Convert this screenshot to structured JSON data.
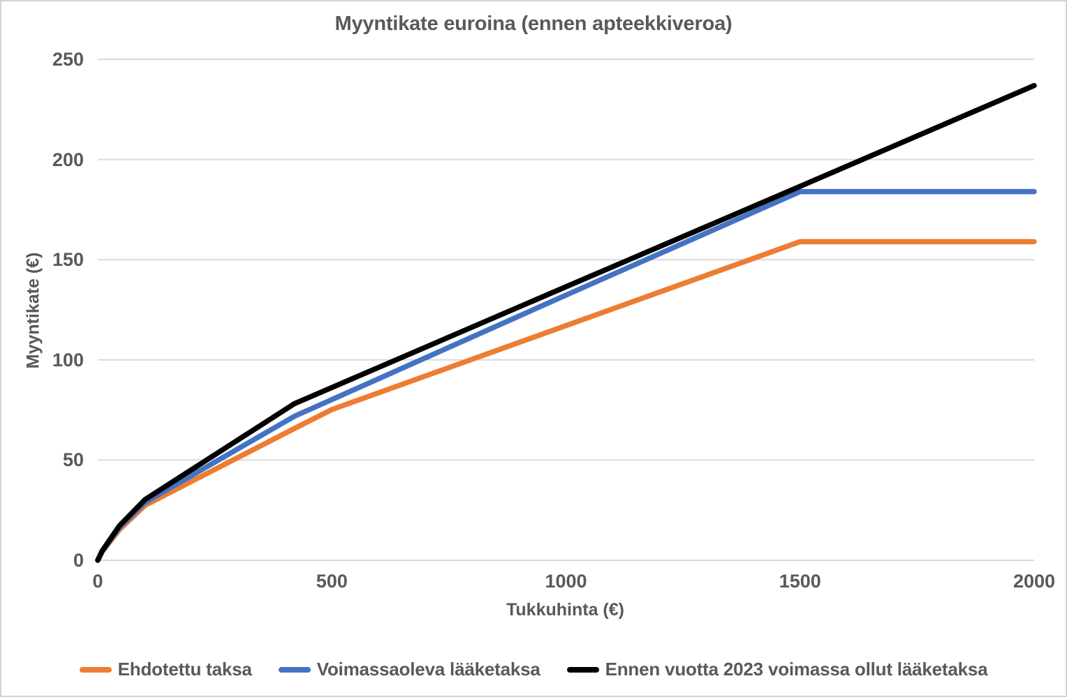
{
  "chart_data": {
    "type": "line",
    "title": "Myyntikate euroina (ennen apteekkiveroa)",
    "xlabel": "Tukkuhinta (€)",
    "ylabel": "Myyntikate (€)",
    "xlim": [
      0,
      2000
    ],
    "ylim": [
      0,
      250
    ],
    "x_ticks": [
      0,
      500,
      1000,
      1500,
      2000
    ],
    "y_ticks": [
      0,
      50,
      100,
      150,
      200,
      250
    ],
    "grid": "horizontal gridlines on",
    "legend_position": "bottom",
    "background_color": "#FFFFFF",
    "text_color": "#595959",
    "gridline_color": "#D9D9D9",
    "x": [
      0,
      9.25,
      46.25,
      100.91,
      420.47,
      500,
      1000,
      1500,
      2000
    ],
    "series": [
      {
        "name": "Ehdotettu taksa",
        "color": "#ED7D31",
        "values": [
          0,
          4.2,
          15.3,
          27.4,
          65.8,
          75.2,
          117.1,
          159,
          159
        ]
      },
      {
        "name": "Voimassaoleva lääketaksa",
        "color": "#4472C4",
        "values": [
          0,
          4.4,
          16.3,
          28.9,
          71.9,
          80.2,
          132.3,
          184,
          184
        ]
      },
      {
        "name": "Ennen vuotta 2023 voimassa ollut lääketaksa",
        "color": "#000000",
        "values": [
          0,
          4.6,
          17.2,
          30.3,
          78.2,
          86.2,
          136.5,
          186.6,
          236.9
        ]
      }
    ]
  }
}
